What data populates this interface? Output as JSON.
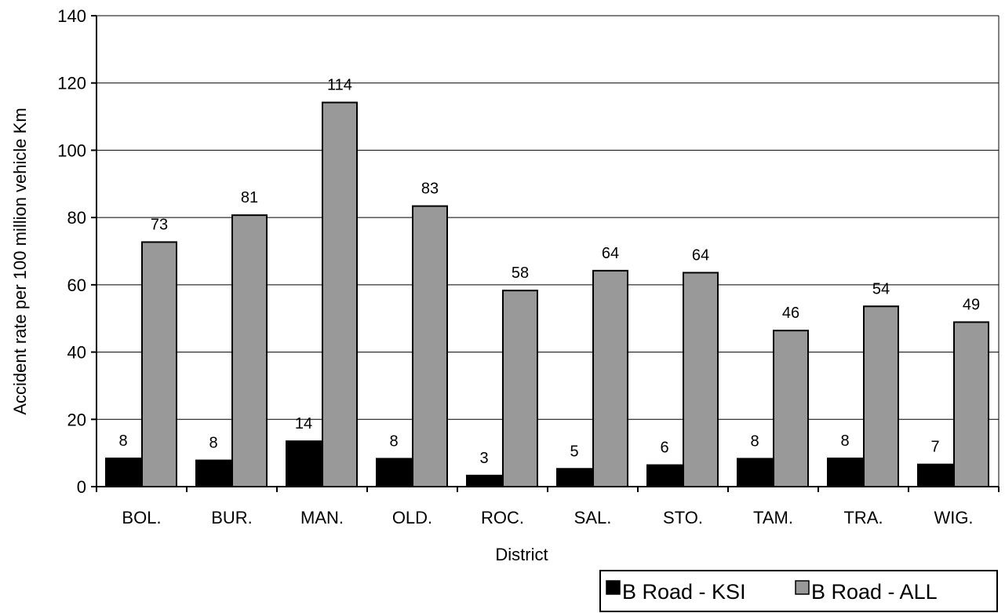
{
  "chart_data": {
    "type": "bar",
    "title": "",
    "xlabel": "District",
    "ylabel": "Accident rate per 100 million vehicle Km",
    "ylim": [
      0,
      140
    ],
    "yticks": [
      0,
      20,
      40,
      60,
      80,
      100,
      120,
      140
    ],
    "grid": true,
    "legend_position": "bottom-right",
    "categories": [
      "BOL.",
      "BUR.",
      "MAN.",
      "OLD.",
      "ROC.",
      "SAL.",
      "STO.",
      "TAM.",
      "TRA.",
      "WIG."
    ],
    "series": [
      {
        "name": "B Road - KSI",
        "color": "#000000",
        "values": [
          8.4,
          7.8,
          13.5,
          8.3,
          3.3,
          5.3,
          6.4,
          8.3,
          8.4,
          6.6
        ],
        "labels": [
          "8",
          "8",
          "14",
          "8",
          "3",
          "5",
          "6",
          "8",
          "8",
          "7"
        ]
      },
      {
        "name": "B Road - ALL",
        "color": "#999999",
        "values": [
          72.7,
          80.7,
          114.2,
          83.4,
          58.3,
          64.2,
          63.6,
          46.4,
          53.6,
          48.9
        ],
        "labels": [
          "73",
          "81",
          "114",
          "83",
          "58",
          "64",
          "64",
          "46",
          "54",
          "49"
        ]
      }
    ]
  }
}
